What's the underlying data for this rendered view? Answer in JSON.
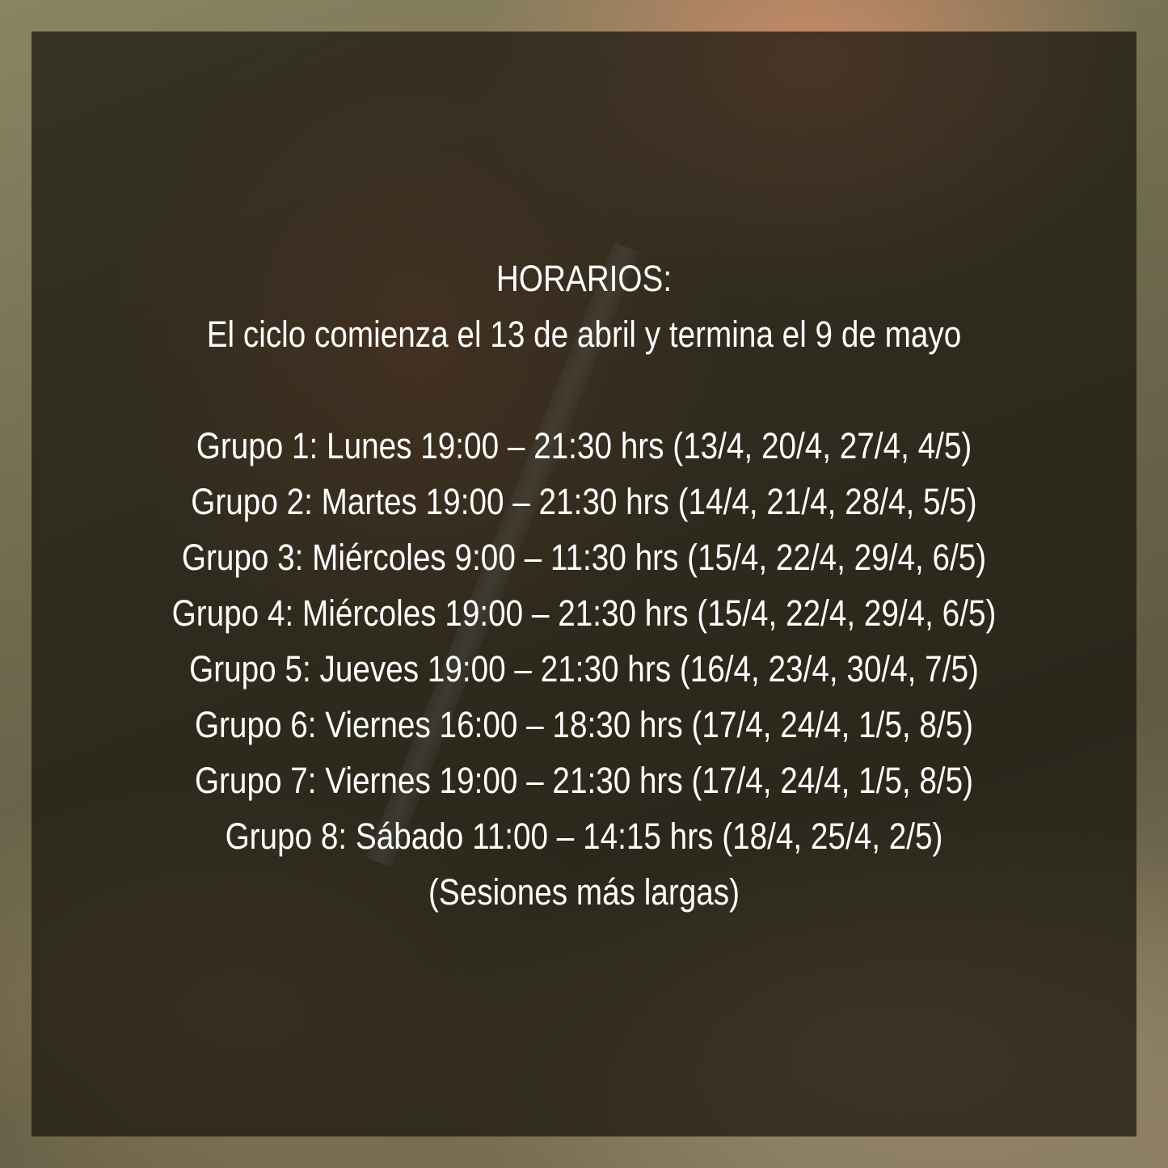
{
  "title": "HORARIOS:",
  "subtitle": "El ciclo comienza el 13 de abril y termina el 9 de mayo",
  "groups": [
    "Grupo 1: Lunes 19:00 – 21:30 hrs (13/4, 20/4, 27/4, 4/5)",
    "Grupo 2: Martes 19:00 – 21:30 hrs (14/4, 21/4, 28/4, 5/5)",
    "Grupo 3: Miércoles 9:00 – 11:30 hrs (15/4, 22/4, 29/4, 6/5)",
    "Grupo 4: Miércoles 19:00 – 21:30 hrs (15/4, 22/4, 29/4, 6/5)",
    "Grupo 5: Jueves 19:00 – 21:30 hrs (16/4, 23/4, 30/4, 7/5)",
    "Grupo 6: Viernes 16:00 – 18:30 hrs (17/4, 24/4, 1/5, 8/5)",
    "Grupo 7: Viernes 19:00 – 21:30 hrs  (17/4, 24/4, 1/5, 8/5)",
    "Grupo 8: Sábado 11:00 – 14:15 hrs  (18/4, 25/4, 2/5)"
  ],
  "note": "(Sesiones más largas)"
}
